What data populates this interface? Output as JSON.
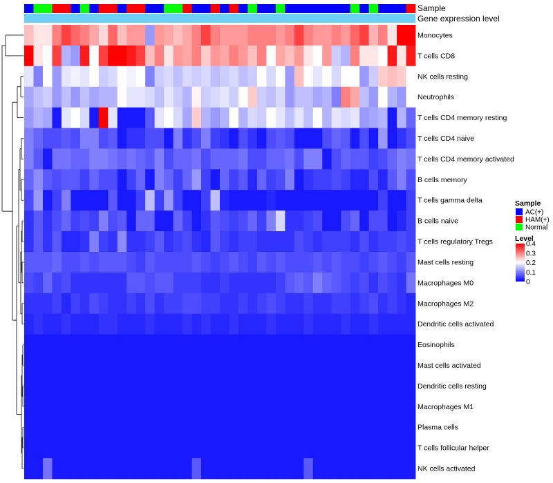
{
  "chart_data": {
    "type": "heatmap",
    "annotation_labels": {
      "sample": "Sample",
      "gene_expression": "Gene expression level"
    },
    "annotation_colors": {
      "AC(+)": "#0000ff",
      "HAM(+)": "#ff0000",
      "Normal": "#00ff00",
      "gene_expression": "#6ecff6"
    },
    "sample_groups": [
      "AC(+)",
      "Normal",
      "Normal",
      "HAM(+)",
      "HAM(+)",
      "AC(+)",
      "Normal",
      "AC(+)",
      "HAM(+)",
      "HAM(+)",
      "AC(+)",
      "HAM(+)",
      "HAM(+)",
      "AC(+)",
      "AC(+)",
      "Normal",
      "Normal",
      "HAM(+)",
      "AC(+)",
      "AC(+)",
      "HAM(+)",
      "AC(+)",
      "HAM(+)",
      "AC(+)",
      "Normal",
      "AC(+)",
      "AC(+)",
      "Normal",
      "AC(+)",
      "AC(+)",
      "AC(+)",
      "AC(+)",
      "AC(+)",
      "AC(+)",
      "AC(+)",
      "Normal",
      "AC(+)",
      "Normal",
      "AC(+)",
      "AC(+)",
      "AC(+)",
      "HAM(+)"
    ],
    "rows": [
      {
        "label": "Monocytes",
        "values": [
          0.25,
          0.22,
          0.22,
          0.3,
          0.35,
          0.32,
          0.3,
          0.27,
          0.23,
          0.32,
          0.25,
          0.28,
          0.28,
          0.12,
          0.28,
          0.27,
          0.25,
          0.27,
          0.3,
          0.35,
          0.3,
          0.28,
          0.28,
          0.28,
          0.3,
          0.3,
          0.3,
          0.28,
          0.3,
          0.35,
          0.3,
          0.28,
          0.28,
          0.3,
          0.28,
          0.32,
          0.35,
          0.26,
          0.3,
          0.22,
          0.4,
          0.4
        ]
      },
      {
        "label": "T cells CD8",
        "values": [
          0.4,
          0.22,
          0.2,
          0.35,
          0.14,
          0.12,
          0.38,
          0.2,
          0.35,
          0.42,
          0.42,
          0.38,
          0.35,
          0.25,
          0.3,
          0.22,
          0.28,
          0.27,
          0.3,
          0.24,
          0.28,
          0.27,
          0.3,
          0.28,
          0.25,
          0.3,
          0.2,
          0.27,
          0.25,
          0.28,
          0.22,
          0.2,
          0.28,
          0.16,
          0.14,
          0.3,
          0.22,
          0.22,
          0.2,
          0.38,
          0.22,
          0.38
        ]
      },
      {
        "label": "NK cells resting",
        "values": [
          0.18,
          0.1,
          0.2,
          0.12,
          0.18,
          0.19,
          0.18,
          0.2,
          0.16,
          0.17,
          0.2,
          0.19,
          0.2,
          0.1,
          0.16,
          0.17,
          0.15,
          0.17,
          0.16,
          0.17,
          0.15,
          0.16,
          0.17,
          0.15,
          0.16,
          0.2,
          0.17,
          0.2,
          0.12,
          0.25,
          0.2,
          0.18,
          0.2,
          0.17,
          0.2,
          0.2,
          0.12,
          0.16,
          0.24,
          0.25,
          0.24,
          0.2
        ]
      },
      {
        "label": "Neutrophils",
        "values": [
          0.13,
          0.15,
          0.16,
          0.12,
          0.15,
          0.12,
          0.15,
          0.13,
          0.14,
          0.14,
          0.2,
          0.18,
          0.18,
          0.17,
          0.15,
          0.18,
          0.16,
          0.14,
          0.21,
          0.16,
          0.17,
          0.18,
          0.16,
          0.2,
          0.24,
          0.16,
          0.15,
          0.17,
          0.12,
          0.15,
          0.15,
          0.13,
          0.14,
          0.1,
          0.3,
          0.27,
          0.15,
          0.12,
          0.2,
          0.14,
          0.12,
          0.2
        ]
      },
      {
        "label": "T cells CD4 memory resting",
        "values": [
          0.12,
          0.14,
          0.13,
          0.02,
          0.18,
          0.2,
          0.17,
          0.02,
          0.42,
          0.18,
          0.02,
          0.02,
          0.02,
          0.07,
          0.18,
          0.2,
          0.17,
          0.13,
          0.24,
          0.14,
          0.12,
          0.14,
          0.2,
          0.14,
          0.17,
          0.16,
          0.2,
          0.18,
          0.15,
          0.18,
          0.15,
          0.2,
          0.14,
          0.18,
          0.17,
          0.18,
          0.12,
          0.13,
          0.14,
          0.02,
          0.14,
          0.08
        ]
      },
      {
        "label": "T cells CD4 naive",
        "values": [
          0.1,
          0.08,
          0.06,
          0.06,
          0.07,
          0.06,
          0.1,
          0.1,
          0.06,
          0.07,
          0.02,
          0.04,
          0.04,
          0.06,
          0.06,
          0.02,
          0.1,
          0.04,
          0.06,
          0.1,
          0.05,
          0.04,
          0.02,
          0.06,
          0.04,
          0.02,
          0.06,
          0.07,
          0.06,
          0.02,
          0.02,
          0.02,
          0.06,
          0.08,
          0.07,
          0.02,
          0.06,
          0.02,
          0.12,
          0.02,
          0.04,
          0.06
        ]
      },
      {
        "label": "T cells CD4 memory activated",
        "values": [
          0.1,
          0.07,
          0.02,
          0.09,
          0.09,
          0.08,
          0.08,
          0.1,
          0.1,
          0.09,
          0.08,
          0.09,
          0.08,
          0.07,
          0.1,
          0.06,
          0.08,
          0.08,
          0.09,
          0.06,
          0.08,
          0.08,
          0.08,
          0.09,
          0.06,
          0.06,
          0.08,
          0.08,
          0.09,
          0.06,
          0.1,
          0.1,
          0.02,
          0.06,
          0.08,
          0.07,
          0.07,
          0.05,
          0.06,
          0.08,
          0.1,
          0.09
        ]
      },
      {
        "label": "B cells memory",
        "values": [
          0.08,
          0.11,
          0.07,
          0.06,
          0.07,
          0.07,
          0.05,
          0.08,
          0.06,
          0.06,
          0.02,
          0.05,
          0.08,
          0.02,
          0.1,
          0.08,
          0.05,
          0.08,
          0.12,
          0.05,
          0.02,
          0.08,
          0.05,
          0.07,
          0.03,
          0.08,
          0.05,
          0.06,
          0.1,
          0.02,
          0.04,
          0.05,
          0.05,
          0.06,
          0.05,
          0.03,
          0.03,
          0.06,
          0.03,
          0.07,
          0.1,
          0.06
        ]
      },
      {
        "label": "T cells gamma delta",
        "values": [
          0.06,
          0.12,
          0.02,
          0.05,
          0.1,
          0.02,
          0.02,
          0.02,
          0.02,
          0.07,
          0.02,
          0.02,
          0.05,
          0.15,
          0.05,
          0.12,
          0.05,
          0.02,
          0.02,
          0.05,
          0.15,
          0.03,
          0.02,
          0.02,
          0.02,
          0.02,
          0.03,
          0.02,
          0.02,
          0.02,
          0.02,
          0.02,
          0.02,
          0.02,
          0.02,
          0.02,
          0.02,
          0.02,
          0.05,
          0.02,
          0.02,
          0.05
        ]
      },
      {
        "label": "B cells naive",
        "values": [
          0.04,
          0.07,
          0.04,
          0.06,
          0.08,
          0.05,
          0.06,
          0.05,
          0.1,
          0.06,
          0.07,
          0.02,
          0.08,
          0.08,
          0.02,
          0.02,
          0.08,
          0.05,
          0.02,
          0.04,
          0.07,
          0.06,
          0.05,
          0.06,
          0.08,
          0.05,
          0.1,
          0.17,
          0.04,
          0.04,
          0.05,
          0.06,
          0.02,
          0.02,
          0.06,
          0.08,
          0.02,
          0.06,
          0.06,
          0.02,
          0.03,
          0.05
        ]
      },
      {
        "label": "T cells regulatory  Tregs",
        "values": [
          0.04,
          0.07,
          0.04,
          0.07,
          0.03,
          0.03,
          0.04,
          0.1,
          0.05,
          0.04,
          0.11,
          0.04,
          0.04,
          0.05,
          0.07,
          0.04,
          0.05,
          0.06,
          0.04,
          0.03,
          0.07,
          0.05,
          0.04,
          0.05,
          0.05,
          0.04,
          0.04,
          0.04,
          0.04,
          0.06,
          0.05,
          0.04,
          0.05,
          0.05,
          0.05,
          0.04,
          0.06,
          0.04,
          0.05,
          0.05,
          0.06,
          0.05
        ]
      },
      {
        "label": "Mast cells resting",
        "values": [
          0.07,
          0.07,
          0.07,
          0.08,
          0.06,
          0.06,
          0.07,
          0.06,
          0.07,
          0.07,
          0.07,
          0.06,
          0.05,
          0.07,
          0.06,
          0.06,
          0.06,
          0.06,
          0.07,
          0.06,
          0.05,
          0.06,
          0.07,
          0.06,
          0.05,
          0.07,
          0.06,
          0.07,
          0.06,
          0.06,
          0.06,
          0.07,
          0.06,
          0.07,
          0.06,
          0.06,
          0.05,
          0.06,
          0.07,
          0.06,
          0.05,
          0.07
        ]
      },
      {
        "label": "Macrophages M0",
        "values": [
          0.06,
          0.05,
          0.08,
          0.05,
          0.06,
          0.04,
          0.04,
          0.04,
          0.04,
          0.04,
          0.04,
          0.07,
          0.07,
          0.06,
          0.07,
          0.07,
          0.05,
          0.05,
          0.05,
          0.04,
          0.04,
          0.05,
          0.04,
          0.04,
          0.04,
          0.04,
          0.04,
          0.05,
          0.07,
          0.08,
          0.07,
          0.1,
          0.08,
          0.07,
          0.06,
          0.05,
          0.06,
          0.04,
          0.06,
          0.05,
          0.04,
          0.09
        ]
      },
      {
        "label": "Macrophages M2",
        "values": [
          0.04,
          0.04,
          0.04,
          0.05,
          0.03,
          0.05,
          0.04,
          0.06,
          0.05,
          0.04,
          0.04,
          0.05,
          0.04,
          0.06,
          0.04,
          0.05,
          0.05,
          0.06,
          0.06,
          0.05,
          0.05,
          0.04,
          0.04,
          0.05,
          0.04,
          0.05,
          0.06,
          0.05,
          0.04,
          0.04,
          0.05,
          0.04,
          0.04,
          0.05,
          0.05,
          0.04,
          0.05,
          0.06,
          0.04,
          0.05,
          0.04,
          0.03
        ]
      },
      {
        "label": "Dendritic cells activated",
        "values": [
          0.03,
          0.04,
          0.03,
          0.03,
          0.04,
          0.03,
          0.03,
          0.03,
          0.04,
          0.04,
          0.03,
          0.03,
          0.03,
          0.04,
          0.03,
          0.03,
          0.03,
          0.04,
          0.03,
          0.04,
          0.03,
          0.03,
          0.04,
          0.03,
          0.03,
          0.03,
          0.04,
          0.03,
          0.03,
          0.03,
          0.04,
          0.03,
          0.03,
          0.03,
          0.04,
          0.03,
          0.03,
          0.04,
          0.03,
          0.03,
          0.03,
          0.03
        ]
      },
      {
        "label": "Eosinophils",
        "values": [
          0.02,
          0.02,
          0.02,
          0.02,
          0.02,
          0.02,
          0.02,
          0.02,
          0.02,
          0.02,
          0.02,
          0.02,
          0.02,
          0.02,
          0.02,
          0.02,
          0.02,
          0.02,
          0.02,
          0.02,
          0.02,
          0.02,
          0.02,
          0.02,
          0.02,
          0.02,
          0.02,
          0.02,
          0.02,
          0.02,
          0.02,
          0.02,
          0.02,
          0.02,
          0.02,
          0.02,
          0.02,
          0.02,
          0.02,
          0.02,
          0.02,
          0.02
        ]
      },
      {
        "label": "Mast cells activated",
        "values": [
          0.02,
          0.02,
          0.02,
          0.02,
          0.02,
          0.02,
          0.02,
          0.02,
          0.02,
          0.02,
          0.02,
          0.02,
          0.02,
          0.02,
          0.02,
          0.02,
          0.02,
          0.02,
          0.02,
          0.02,
          0.02,
          0.02,
          0.02,
          0.02,
          0.02,
          0.02,
          0.02,
          0.02,
          0.02,
          0.02,
          0.02,
          0.02,
          0.02,
          0.02,
          0.02,
          0.02,
          0.02,
          0.02,
          0.02,
          0.02,
          0.02,
          0.02
        ]
      },
      {
        "label": "Dendritic cells resting",
        "values": [
          0.02,
          0.02,
          0.02,
          0.02,
          0.02,
          0.02,
          0.02,
          0.02,
          0.02,
          0.02,
          0.02,
          0.02,
          0.02,
          0.02,
          0.02,
          0.02,
          0.02,
          0.02,
          0.02,
          0.02,
          0.02,
          0.02,
          0.02,
          0.02,
          0.02,
          0.02,
          0.02,
          0.02,
          0.02,
          0.02,
          0.02,
          0.02,
          0.02,
          0.02,
          0.02,
          0.02,
          0.02,
          0.02,
          0.02,
          0.02,
          0.02,
          0.02
        ]
      },
      {
        "label": "Macrophages M1",
        "values": [
          0.02,
          0.02,
          0.02,
          0.02,
          0.02,
          0.02,
          0.02,
          0.02,
          0.02,
          0.02,
          0.02,
          0.02,
          0.02,
          0.02,
          0.02,
          0.02,
          0.02,
          0.02,
          0.02,
          0.02,
          0.02,
          0.02,
          0.02,
          0.02,
          0.02,
          0.02,
          0.02,
          0.02,
          0.02,
          0.02,
          0.02,
          0.02,
          0.02,
          0.02,
          0.02,
          0.02,
          0.02,
          0.02,
          0.02,
          0.02,
          0.02,
          0.02
        ]
      },
      {
        "label": "Plasma cells",
        "values": [
          0.02,
          0.02,
          0.02,
          0.02,
          0.02,
          0.02,
          0.02,
          0.02,
          0.02,
          0.02,
          0.02,
          0.02,
          0.02,
          0.02,
          0.02,
          0.02,
          0.02,
          0.02,
          0.02,
          0.02,
          0.02,
          0.02,
          0.02,
          0.02,
          0.02,
          0.02,
          0.02,
          0.02,
          0.02,
          0.02,
          0.02,
          0.02,
          0.02,
          0.02,
          0.02,
          0.02,
          0.02,
          0.02,
          0.02,
          0.02,
          0.02,
          0.02
        ]
      },
      {
        "label": "T cells follicular helper",
        "values": [
          0.02,
          0.02,
          0.02,
          0.02,
          0.02,
          0.02,
          0.02,
          0.02,
          0.02,
          0.02,
          0.02,
          0.02,
          0.02,
          0.02,
          0.02,
          0.02,
          0.02,
          0.02,
          0.02,
          0.02,
          0.02,
          0.02,
          0.02,
          0.02,
          0.02,
          0.02,
          0.02,
          0.02,
          0.02,
          0.02,
          0.02,
          0.02,
          0.02,
          0.02,
          0.02,
          0.02,
          0.02,
          0.02,
          0.02,
          0.02,
          0.02,
          0.02
        ]
      },
      {
        "label": "NK cells activated",
        "values": [
          0.02,
          0.02,
          0.09,
          0.02,
          0.02,
          0.02,
          0.02,
          0.02,
          0.02,
          0.02,
          0.02,
          0.02,
          0.02,
          0.02,
          0.02,
          0.02,
          0.02,
          0.02,
          0.07,
          0.02,
          0.02,
          0.02,
          0.02,
          0.02,
          0.02,
          0.02,
          0.02,
          0.02,
          0.02,
          0.02,
          0.07,
          0.02,
          0.02,
          0.02,
          0.02,
          0.02,
          0.02,
          0.02,
          0.02,
          0.02,
          0.02,
          0.02
        ]
      }
    ],
    "legend": {
      "sample_title": "Sample",
      "sample_entries": [
        {
          "label": "AC(+)",
          "color": "#0000ff"
        },
        {
          "label": "HAM(+)",
          "color": "#ff0000"
        },
        {
          "label": "Normal",
          "color": "#00ff00"
        }
      ],
      "level_title": "Level",
      "level_ticks": [
        "0.4",
        "0.3",
        "0.2",
        "0.1",
        "0"
      ],
      "level_tick_values": [
        0.4,
        0.3,
        0.2,
        0.1,
        0
      ],
      "color_low": "#0000ff",
      "color_mid": "#ffffff",
      "color_high": "#ff0000",
      "value_min": 0,
      "value_mid": 0.2,
      "value_max": 0.4
    }
  }
}
